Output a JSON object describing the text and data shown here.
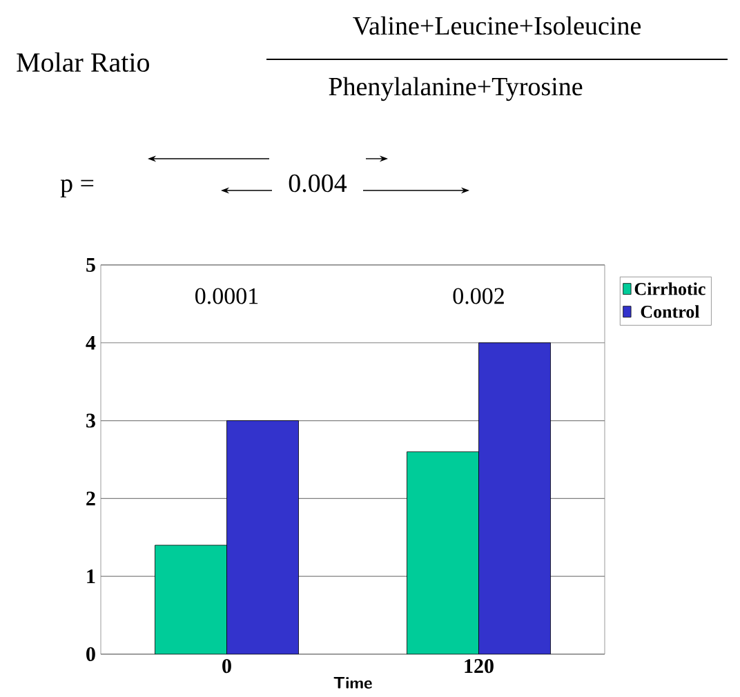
{
  "chart_data": {
    "type": "bar",
    "title": "Molar Ratio",
    "annotations": [
      "Valine+Leucine+Isoleucine",
      "Phenylalanine+Tyrosine",
      "p =",
      "0.004",
      "0.0001",
      "0.002"
    ],
    "categories": [
      "0",
      "120"
    ],
    "xlabel": "Time",
    "series": [
      {
        "name": "Cirrhotic",
        "color": "#00cc99",
        "values": [
          1.4,
          2.6
        ]
      },
      {
        "name": "Control",
        "color": "#3333cc",
        "values": [
          3.0,
          4.0
        ]
      }
    ],
    "ylim": [
      0,
      5
    ],
    "yticks": [
      0,
      1,
      2,
      3,
      4,
      5
    ],
    "grid": "y",
    "legend": "right"
  }
}
